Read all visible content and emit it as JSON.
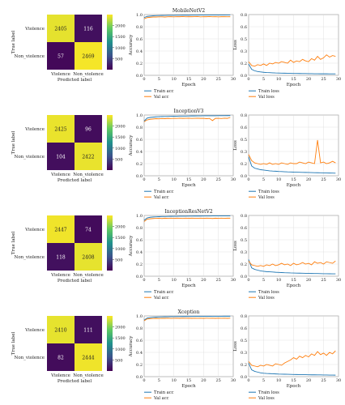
{
  "chart_data": [
    {
      "model": "MobileNetV2",
      "confusion": {
        "type": "heatmap",
        "rows": [
          "Violence",
          "Non_violence"
        ],
        "cols": [
          "Violence",
          "Non_violence"
        ],
        "values": [
          [
            2405,
            116
          ],
          [
            57,
            2469
          ]
        ],
        "xlabel": "Predicted label",
        "ylabel": "True label",
        "colorbar_ticks": [
          500,
          1000,
          1500,
          2000
        ]
      },
      "accuracy": {
        "type": "line",
        "title": "MobileNetV2",
        "xlabel": "Epoch",
        "ylabel": "Accuracy",
        "xlim": [
          0,
          30
        ],
        "ylim": [
          0,
          1.0
        ],
        "yticks": [
          "0.0",
          "0.2",
          "0.4",
          "0.6",
          "0.8",
          "1.0"
        ],
        "xticks": [
          0,
          5,
          10,
          15,
          20,
          25,
          30
        ],
        "grid": true,
        "legend": "below",
        "series": [
          {
            "name": "Train acc",
            "color": "#1f77b4",
            "values": [
              0.95,
              0.97,
              0.975,
              0.98,
              0.982,
              0.984,
              0.985,
              0.986,
              0.987,
              0.988,
              0.988,
              0.989,
              0.989,
              0.99,
              0.99,
              0.99,
              0.991,
              0.991,
              0.991,
              0.992,
              0.992,
              0.992,
              0.992,
              0.993,
              0.993,
              0.993,
              0.993,
              0.993,
              0.994,
              0.994
            ]
          },
          {
            "name": "Val acc",
            "color": "#ff7f0e",
            "values": [
              0.93,
              0.95,
              0.955,
              0.96,
              0.96,
              0.962,
              0.963,
              0.96,
              0.964,
              0.965,
              0.962,
              0.966,
              0.965,
              0.967,
              0.964,
              0.966,
              0.965,
              0.966,
              0.967,
              0.963,
              0.966,
              0.965,
              0.967,
              0.964,
              0.966,
              0.962,
              0.965,
              0.966,
              0.964,
              0.965
            ]
          }
        ]
      },
      "loss": {
        "type": "line",
        "xlabel": "Epoch",
        "ylabel": "Loss",
        "xlim": [
          0,
          30
        ],
        "ylim": [
          0,
          0.8
        ],
        "xticks": [
          0,
          5,
          10,
          15,
          20,
          25,
          30
        ],
        "grid": true,
        "legend": "below",
        "series": [
          {
            "name": "Train loss",
            "color": "#1f77b4",
            "values": [
              0.15,
              0.08,
              0.06,
              0.05,
              0.045,
              0.04,
              0.037,
              0.035,
              0.033,
              0.031,
              0.03,
              0.029,
              0.028,
              0.027,
              0.026,
              0.025,
              0.025,
              0.024,
              0.023,
              0.023,
              0.022,
              0.022,
              0.021,
              0.021,
              0.02,
              0.02,
              0.02,
              0.019,
              0.019,
              0.019
            ]
          },
          {
            "name": "Val loss",
            "color": "#ff7f0e",
            "values": [
              0.18,
              0.13,
              0.12,
              0.14,
              0.13,
              0.15,
              0.13,
              0.16,
              0.15,
              0.17,
              0.16,
              0.18,
              0.17,
              0.16,
              0.2,
              0.17,
              0.19,
              0.18,
              0.21,
              0.19,
              0.18,
              0.22,
              0.2,
              0.25,
              0.21,
              0.23,
              0.27,
              0.24,
              0.26,
              0.25
            ]
          }
        ]
      }
    },
    {
      "model": "InceptionV3",
      "confusion": {
        "type": "heatmap",
        "rows": [
          "Violence",
          "Non_violence"
        ],
        "cols": [
          "Violence",
          "Non_violence"
        ],
        "values": [
          [
            2425,
            96
          ],
          [
            104,
            2422
          ]
        ],
        "xlabel": "Predicted label",
        "ylabel": "True label",
        "colorbar_ticks": [
          500,
          1000,
          1500,
          2000
        ]
      },
      "accuracy": {
        "type": "line",
        "title": "InceptionV3",
        "xlabel": "Epoch",
        "ylabel": "Accuracy",
        "xlim": [
          0,
          30
        ],
        "ylim": [
          0,
          1.0
        ],
        "xticks": [
          0,
          5,
          10,
          15,
          20,
          25,
          30
        ],
        "grid": true,
        "legend": "below",
        "series": [
          {
            "name": "Train acc",
            "color": "#1f77b4",
            "values": [
              0.9,
              0.95,
              0.96,
              0.965,
              0.97,
              0.972,
              0.975,
              0.976,
              0.978,
              0.979,
              0.98,
              0.981,
              0.982,
              0.983,
              0.983,
              0.984,
              0.985,
              0.985,
              0.986,
              0.986,
              0.987,
              0.987,
              0.988,
              0.988,
              0.988,
              0.989,
              0.989,
              0.989,
              0.99,
              0.99
            ]
          },
          {
            "name": "Val acc",
            "color": "#ff7f0e",
            "values": [
              0.89,
              0.92,
              0.93,
              0.935,
              0.94,
              0.938,
              0.942,
              0.94,
              0.945,
              0.943,
              0.946,
              0.944,
              0.947,
              0.945,
              0.946,
              0.948,
              0.944,
              0.946,
              0.947,
              0.945,
              0.946,
              0.94,
              0.944,
              0.908,
              0.945,
              0.946,
              0.943,
              0.947,
              0.945,
              0.96
            ]
          }
        ]
      },
      "loss": {
        "type": "line",
        "xlabel": "Epoch",
        "ylabel": "Loss",
        "xlim": [
          0,
          30
        ],
        "ylim": [
          0,
          0.8
        ],
        "xticks": [
          0,
          5,
          10,
          15,
          20,
          25,
          30
        ],
        "grid": true,
        "legend": "below",
        "series": [
          {
            "name": "Train loss",
            "color": "#1f77b4",
            "values": [
              0.25,
              0.13,
              0.1,
              0.09,
              0.08,
              0.075,
              0.07,
              0.065,
              0.062,
              0.06,
              0.057,
              0.055,
              0.053,
              0.051,
              0.05,
              0.048,
              0.047,
              0.046,
              0.045,
              0.044,
              0.043,
              0.042,
              0.041,
              0.04,
              0.039,
              0.038,
              0.037,
              0.036,
              0.035,
              0.034
            ]
          },
          {
            "name": "Val loss",
            "color": "#ff7f0e",
            "values": [
              0.28,
              0.2,
              0.17,
              0.16,
              0.15,
              0.16,
              0.15,
              0.17,
              0.15,
              0.16,
              0.15,
              0.17,
              0.16,
              0.15,
              0.17,
              0.16,
              0.16,
              0.18,
              0.17,
              0.16,
              0.18,
              0.17,
              0.16,
              0.47,
              0.17,
              0.18,
              0.16,
              0.17,
              0.19,
              0.17
            ]
          }
        ]
      }
    },
    {
      "model": "InceptionResNetV2",
      "confusion": {
        "type": "heatmap",
        "rows": [
          "Violence",
          "Non_violence"
        ],
        "cols": [
          "Violence",
          "Non_violence"
        ],
        "values": [
          [
            2447,
            74
          ],
          [
            118,
            2408
          ]
        ],
        "xlabel": "Predicted label",
        "ylabel": "True label",
        "colorbar_ticks": [
          500,
          1000,
          1500,
          2000
        ]
      },
      "accuracy": {
        "type": "line",
        "title": "InceptionResNetV2",
        "xlabel": "Epoch",
        "ylabel": "Accuracy",
        "xlim": [
          0,
          30
        ],
        "ylim": [
          0,
          1.0
        ],
        "xticks": [
          0,
          5,
          10,
          15,
          20,
          25,
          30
        ],
        "grid": true,
        "legend": "below",
        "series": [
          {
            "name": "Train acc",
            "color": "#1f77b4",
            "values": [
              0.92,
              0.96,
              0.97,
              0.975,
              0.978,
              0.98,
              0.982,
              0.983,
              0.984,
              0.985,
              0.986,
              0.986,
              0.987,
              0.988,
              0.988,
              0.989,
              0.989,
              0.99,
              0.99,
              0.99,
              0.991,
              0.991,
              0.991,
              0.992,
              0.992,
              0.992,
              0.992,
              0.993,
              0.993,
              0.993
            ]
          },
          {
            "name": "Val acc",
            "color": "#ff7f0e",
            "values": [
              0.9,
              0.94,
              0.945,
              0.95,
              0.952,
              0.954,
              0.95,
              0.955,
              0.953,
              0.956,
              0.952,
              0.955,
              0.954,
              0.951,
              0.956,
              0.953,
              0.955,
              0.954,
              0.952,
              0.956,
              0.953,
              0.955,
              0.954,
              0.95,
              0.955,
              0.953,
              0.956,
              0.952,
              0.955,
              0.955
            ]
          }
        ]
      },
      "loss": {
        "type": "line",
        "xlabel": "Epoch",
        "ylabel": "Loss",
        "xlim": [
          0,
          30
        ],
        "ylim": [
          0,
          0.8
        ],
        "xticks": [
          0,
          5,
          10,
          15,
          20,
          25,
          30
        ],
        "grid": true,
        "legend": "below",
        "series": [
          {
            "name": "Train loss",
            "color": "#1f77b4",
            "values": [
              0.22,
              0.11,
              0.09,
              0.08,
              0.07,
              0.065,
              0.06,
              0.058,
              0.055,
              0.052,
              0.05,
              0.048,
              0.046,
              0.045,
              0.043,
              0.042,
              0.041,
              0.04,
              0.039,
              0.038,
              0.037,
              0.036,
              0.035,
              0.035,
              0.034,
              0.033,
              0.033,
              0.032,
              0.031,
              0.031
            ]
          },
          {
            "name": "Val loss",
            "color": "#ff7f0e",
            "values": [
              0.2,
              0.15,
              0.14,
              0.13,
              0.14,
              0.13,
              0.15,
              0.14,
              0.16,
              0.14,
              0.15,
              0.17,
              0.15,
              0.16,
              0.14,
              0.17,
              0.15,
              0.16,
              0.18,
              0.16,
              0.17,
              0.15,
              0.19,
              0.17,
              0.18,
              0.16,
              0.19,
              0.18,
              0.17,
              0.2
            ]
          }
        ]
      }
    },
    {
      "model": "Xception",
      "confusion": {
        "type": "heatmap",
        "rows": [
          "Violence",
          "Non_violence"
        ],
        "cols": [
          "Violence",
          "Non_violence"
        ],
        "values": [
          [
            2410,
            111
          ],
          [
            82,
            2444
          ]
        ],
        "xlabel": "Predicted label",
        "ylabel": "True label",
        "colorbar_ticks": [
          500,
          1000,
          1500,
          2000
        ]
      },
      "accuracy": {
        "type": "line",
        "title": "Xception",
        "xlabel": "Epoch",
        "ylabel": "Accuracy",
        "xlim": [
          0,
          30
        ],
        "ylim": [
          0,
          1.0
        ],
        "xticks": [
          0,
          5,
          10,
          15,
          20,
          25,
          30
        ],
        "grid": true,
        "legend": "below",
        "series": [
          {
            "name": "Train acc",
            "color": "#1f77b4",
            "values": [
              0.93,
              0.965,
              0.972,
              0.977,
              0.98,
              0.982,
              0.984,
              0.985,
              0.986,
              0.987,
              0.988,
              0.989,
              0.989,
              0.99,
              0.99,
              0.991,
              0.991,
              0.992,
              0.992,
              0.992,
              0.993,
              0.993,
              0.993,
              0.994,
              0.994,
              0.994,
              0.994,
              0.995,
              0.995,
              0.995
            ]
          },
          {
            "name": "Val acc",
            "color": "#ff7f0e",
            "values": [
              0.92,
              0.95,
              0.955,
              0.958,
              0.96,
              0.958,
              0.961,
              0.96,
              0.962,
              0.959,
              0.961,
              0.962,
              0.96,
              0.963,
              0.961,
              0.962,
              0.96,
              0.963,
              0.961,
              0.962,
              0.96,
              0.963,
              0.961,
              0.962,
              0.96,
              0.963,
              0.961,
              0.962,
              0.96,
              0.962
            ]
          }
        ]
      },
      "loss": {
        "type": "line",
        "xlabel": "Epoch",
        "ylabel": "Loss",
        "xlim": [
          0,
          30
        ],
        "ylim": [
          0,
          0.8
        ],
        "xticks": [
          0,
          5,
          10,
          15,
          20,
          25,
          30
        ],
        "grid": true,
        "legend": "below",
        "series": [
          {
            "name": "Train loss",
            "color": "#1f77b4",
            "values": [
              0.18,
              0.09,
              0.07,
              0.06,
              0.05,
              0.045,
              0.042,
              0.04,
              0.038,
              0.036,
              0.034,
              0.033,
              0.032,
              0.031,
              0.03,
              0.029,
              0.028,
              0.027,
              0.026,
              0.026,
              0.025,
              0.024,
              0.024,
              0.023,
              0.023,
              0.022,
              0.022,
              0.021,
              0.021,
              0.02
            ]
          },
          {
            "name": "Val loss",
            "color": "#ff7f0e",
            "values": [
              0.2,
              0.15,
              0.14,
              0.13,
              0.15,
              0.14,
              0.16,
              0.15,
              0.14,
              0.17,
              0.16,
              0.15,
              0.18,
              0.2,
              0.22,
              0.25,
              0.23,
              0.27,
              0.25,
              0.28,
              0.26,
              0.3,
              0.28,
              0.33,
              0.29,
              0.31,
              0.28,
              0.32,
              0.3,
              0.34
            ]
          }
        ]
      }
    }
  ]
}
